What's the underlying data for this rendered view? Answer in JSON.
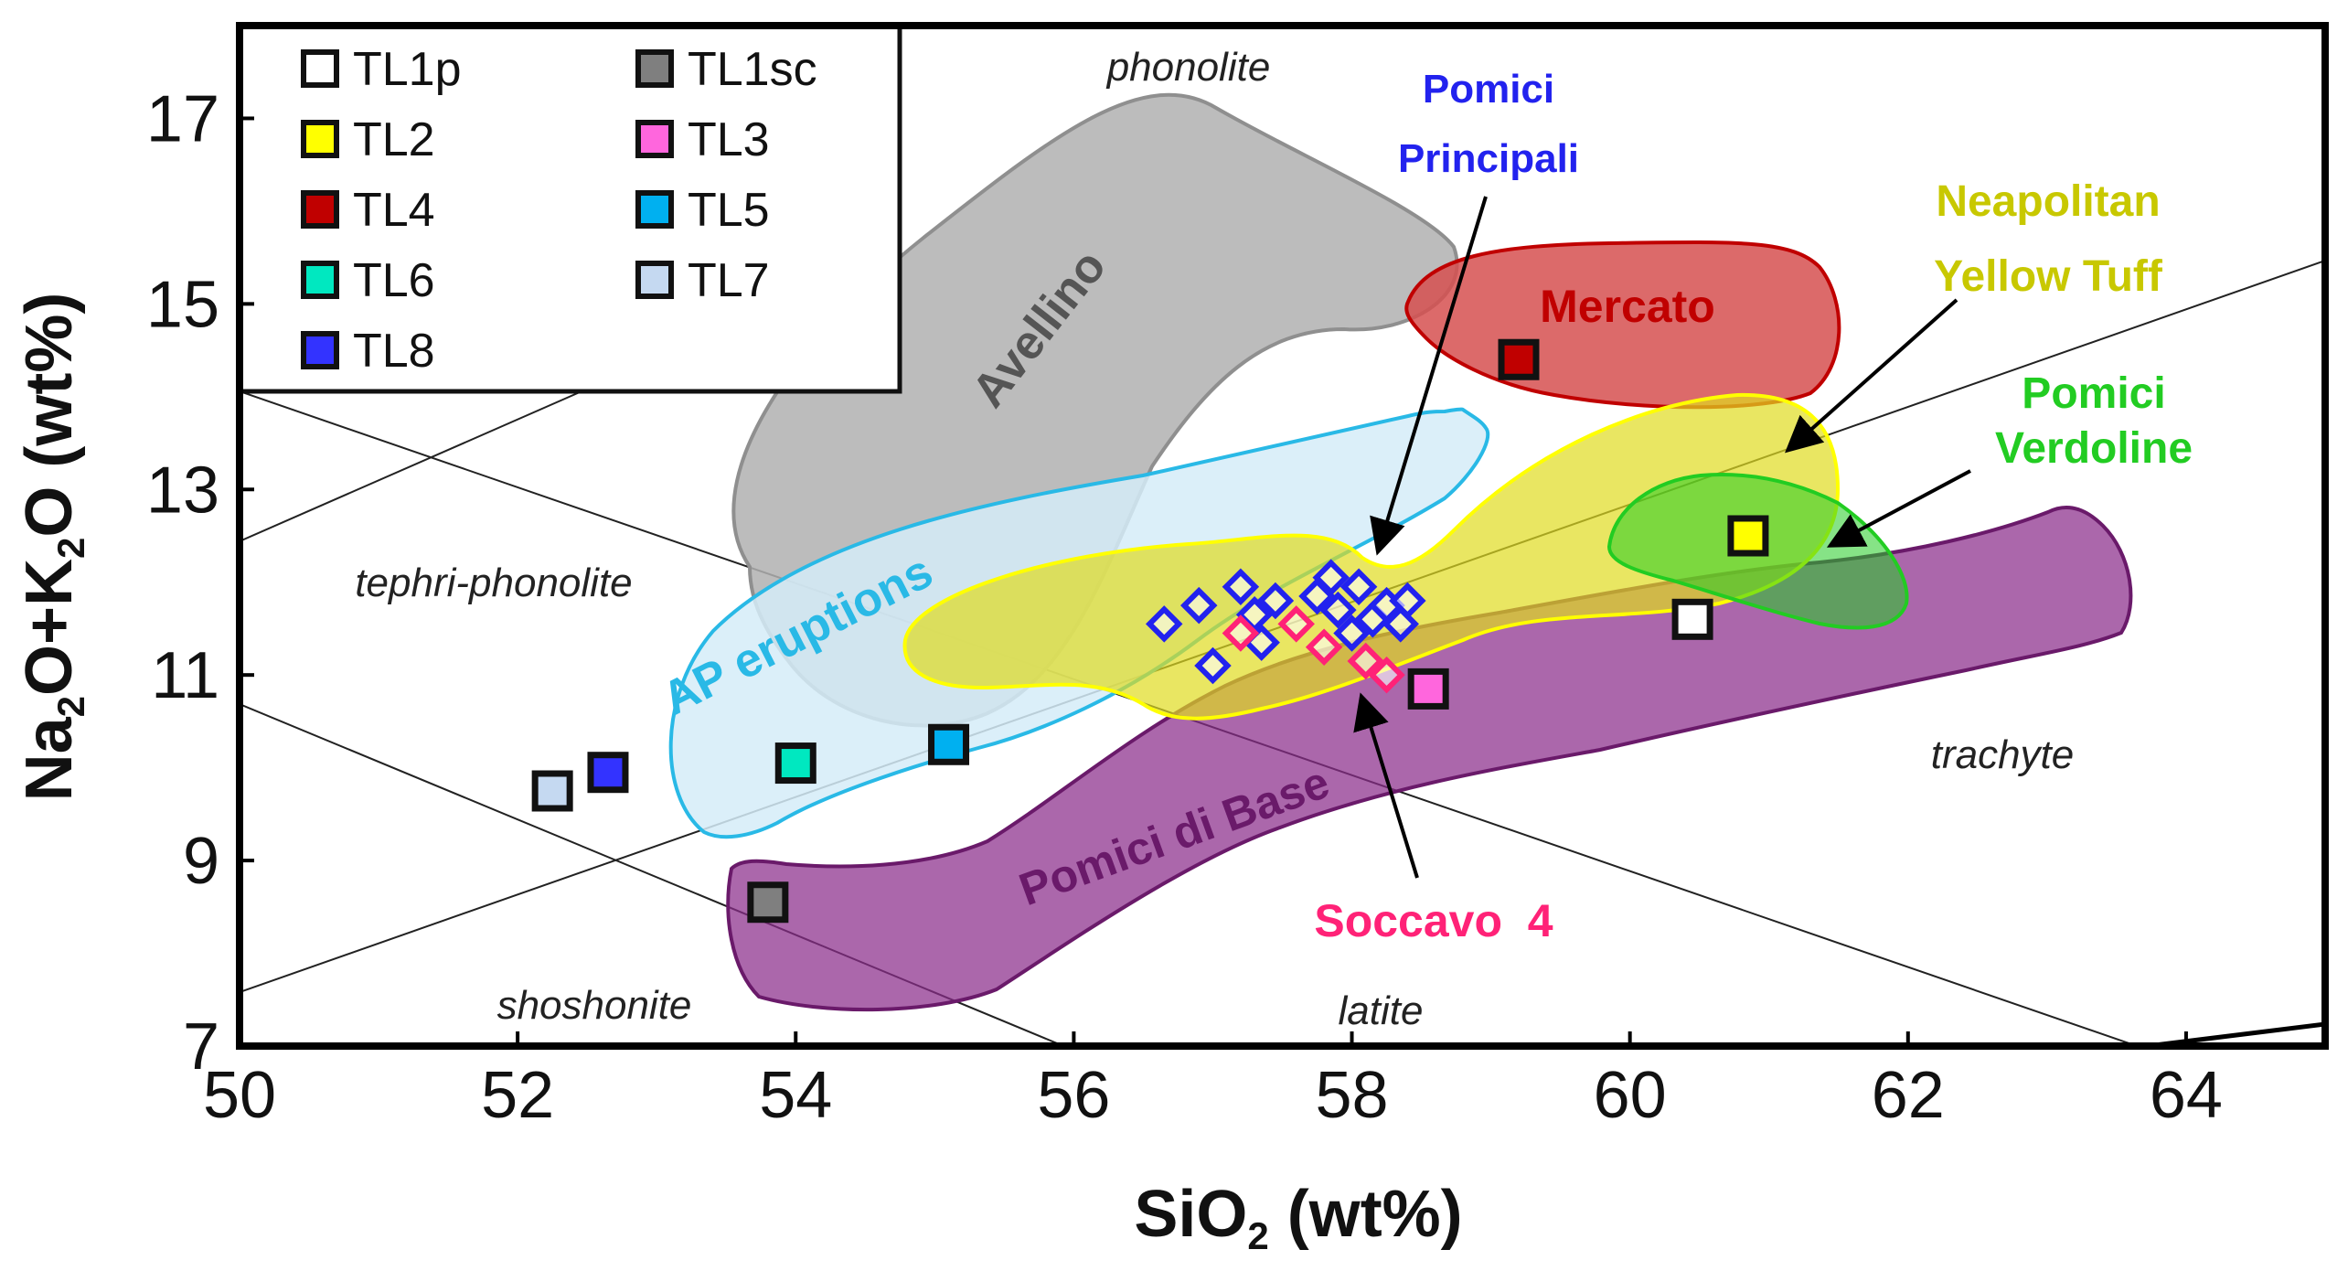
{
  "chart_data": {
    "type": "scatter",
    "xlabel": {
      "base": "SiO",
      "sub": "2",
      "tail": " (wt%)"
    },
    "ylabel": {
      "p1": "Na",
      "s1": "2",
      "p2": "O+K",
      "s2": "2",
      "p3": "O (wt%)"
    },
    "xlim": [
      50,
      65
    ],
    "ylim": [
      7,
      18
    ],
    "xticks": [
      50,
      52,
      54,
      56,
      58,
      60,
      62,
      64
    ],
    "yticks": [
      7,
      9,
      11,
      13,
      15,
      17
    ],
    "legend_position": "top-left",
    "series": [
      {
        "name": "TL1p",
        "color": "#ffffff",
        "points": [
          [
            60.45,
            11.6
          ]
        ]
      },
      {
        "name": "TL1sc",
        "color": "#7f7f7f",
        "points": [
          [
            53.8,
            8.55
          ]
        ]
      },
      {
        "name": "TL2",
        "color": "#ffff00",
        "points": [
          [
            60.85,
            12.5
          ]
        ]
      },
      {
        "name": "TL3",
        "color": "#ff66dd",
        "points": [
          [
            58.55,
            10.85
          ]
        ]
      },
      {
        "name": "TL4",
        "color": "#c00000",
        "points": [
          [
            59.2,
            14.4
          ]
        ]
      },
      {
        "name": "TL5",
        "color": "#00b0f0",
        "points": [
          [
            55.1,
            10.25
          ]
        ]
      },
      {
        "name": "TL6",
        "color": "#00e8c0",
        "points": [
          [
            54.0,
            10.05
          ]
        ]
      },
      {
        "name": "TL7",
        "color": "#c5d9f1",
        "points": [
          [
            52.25,
            9.75
          ]
        ]
      },
      {
        "name": "TL8",
        "color": "#3333ff",
        "points": [
          [
            52.65,
            9.95
          ]
        ]
      }
    ],
    "overlay_points": [
      {
        "name": "Pomici Principali",
        "color": "#2222ee",
        "points": [
          [
            56.65,
            11.55
          ],
          [
            56.9,
            11.75
          ],
          [
            57.0,
            11.1
          ],
          [
            57.2,
            11.95
          ],
          [
            57.3,
            11.65
          ],
          [
            57.35,
            11.35
          ],
          [
            57.45,
            11.8
          ],
          [
            57.75,
            11.85
          ],
          [
            57.85,
            12.05
          ],
          [
            57.9,
            11.7
          ],
          [
            58.0,
            11.45
          ],
          [
            58.05,
            11.95
          ],
          [
            58.15,
            11.6
          ],
          [
            58.25,
            11.75
          ],
          [
            58.35,
            11.55
          ],
          [
            58.4,
            11.8
          ]
        ]
      },
      {
        "name": "Soccavo 4",
        "color": "#ff2277",
        "points": [
          [
            57.2,
            11.45
          ],
          [
            57.6,
            11.55
          ],
          [
            57.8,
            11.3
          ],
          [
            58.1,
            11.15
          ],
          [
            58.25,
            11.0
          ]
        ]
      }
    ],
    "fields": [
      {
        "name": "Avellino",
        "color": "#b0b0b0"
      },
      {
        "name": "Mercato",
        "color": "#d65050"
      },
      {
        "name": "AP eruptions",
        "color": "#29b9e6"
      },
      {
        "name": "Neapolitan Yellow Tuff",
        "color": "#e0dc20"
      },
      {
        "name": "Pomici Verdoline",
        "color": "#22cc22"
      },
      {
        "name": "Pomici di Base",
        "color": "#8a2d8a"
      }
    ],
    "zones": [
      "phonolite",
      "tephri-phonolite",
      "trachyte",
      "shoshonite",
      "latite"
    ],
    "annotations": {
      "pomici_principali": [
        "Pomici",
        "Principali"
      ],
      "neapolitan_yellow_tuff": [
        "Neapolitan",
        "Yellow Tuff"
      ],
      "pomici_verdoline": [
        "Pomici",
        "Verdoline"
      ],
      "soccavo": "Soccavo  4"
    }
  }
}
